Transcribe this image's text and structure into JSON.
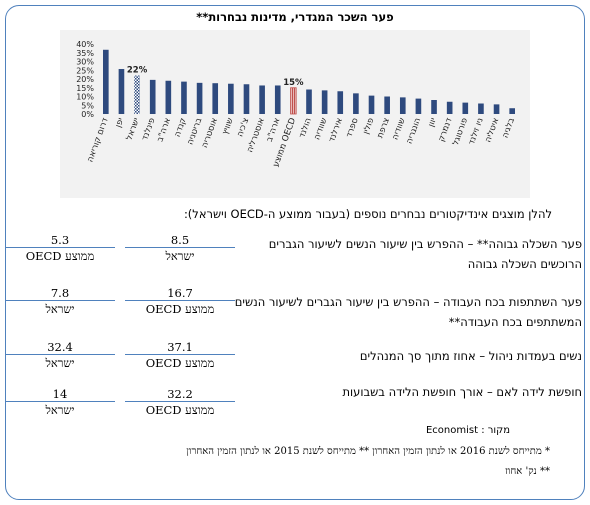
{
  "title": "פער השכר המגדרי, מדינות נבחרות**",
  "chart_data": {
    "type": "bar",
    "title": "",
    "xlabel": "",
    "ylabel": "",
    "ylim": [
      0,
      40
    ],
    "yticks": [
      "0%",
      "5%",
      "10%",
      "15%",
      "20%",
      "25%",
      "30%",
      "35%",
      "40%"
    ],
    "grid": false,
    "categories": [
      "דרום קוריאה",
      "יפן",
      "ישראל",
      "פינלנד",
      "ארה\"ב",
      "קנדה",
      "בריטניה",
      "אוסטריה",
      "שוויץ",
      "צ'כיה",
      "אוסטרליה",
      "ארה\"ב",
      "ממוצע OECD",
      "הולנד",
      "שוודיה",
      "אירלנד",
      "ספרד",
      "פולין",
      "צרפת",
      "שוודיה",
      "הונגריה",
      "יוון",
      "דנמרק",
      "פורטוגל",
      "ניו זילנד",
      "איטליה",
      "בלגיה"
    ],
    "values": [
      36.7,
      25.7,
      22,
      19.5,
      19,
      18.5,
      17.8,
      17.6,
      17.3,
      17,
      16.3,
      16.3,
      15,
      14,
      13.5,
      13,
      11.8,
      10.5,
      10,
      9.5,
      8.8,
      8,
      7,
      6.5,
      6,
      5.5,
      3.3
    ],
    "data_labels": {
      "2": "22%",
      "12": "15%"
    },
    "highlight": {
      "2": "israel",
      "12": "oecd"
    },
    "colors": {
      "bar": "#2e4a7e",
      "israel": "#2e4a7e",
      "oecd": "#c0504d"
    }
  },
  "subtitle": "להלן מוצגים אינדיקטורים נבחרים נוספים (בעבור ממוצע ה-OECD וישראל):",
  "indicators": [
    {
      "label": "פער השכלה גבוהה** – ההפרש בין שיעור הנשים לשיעור הגברים הרוכשים השכלה גבוהה",
      "right_value": "8.5",
      "right_label": "ישראל",
      "left_value": "5.3",
      "left_label": "ממוצע OECD"
    },
    {
      "label": "פער השתתפות בכח העבודה – ההפרש בין שיעור הגברים לשיעור הנשים המשתתפים בכח העבודה**",
      "right_value": "16.7",
      "right_label": "ממוצע OECD",
      "left_value": "7.8",
      "left_label": "ישראל"
    },
    {
      "label": "נשים בעמדות ניהול – אחוז מתוך סך המנהלים",
      "right_value": "37.1",
      "right_label": "ממוצע OECD",
      "left_value": "32.4",
      "left_label": "ישראל"
    },
    {
      "label": "חופשת לידה לאם – אורך חופשת הלידה בשבועות",
      "right_value": "32.2",
      "right_label": "ממוצע OECD",
      "left_value": "14",
      "left_label": "ישראל"
    }
  ],
  "source": "מקור : Economist",
  "notes": [
    "* מתייחס לשנת 2016 או לנתון הזמין האחרון  ** מתייחס לשנת 2015 או לנתון הזמין האחרון",
    "** נק' אחוז"
  ]
}
